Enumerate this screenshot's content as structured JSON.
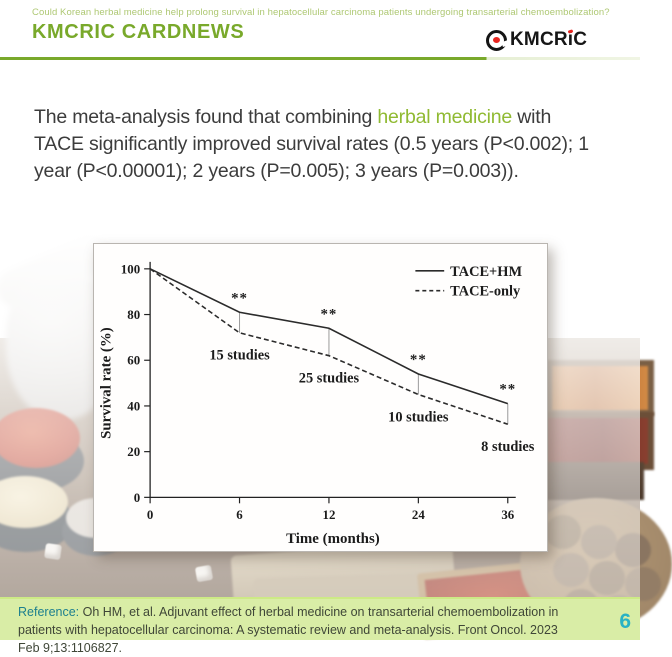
{
  "header": {
    "subtitle": "Could Korean herbal medicine help prolong survival in hepatocellular carcinoma patients undergoing transarterial chemoembolization?",
    "title": "KMCRIC CARDNEWS",
    "logo": {
      "text": "KMCRiC",
      "pre": "KMCR",
      "i_char": "i",
      "post": "C"
    },
    "accent_green": "#79a92b",
    "subtitle_green": "#aec873"
  },
  "body": {
    "segments": [
      {
        "text": "The meta-analysis found that combining ",
        "highlight": false
      },
      {
        "text": "herbal medicine",
        "highlight": true
      },
      {
        "text": " with TACE significantly improved survival rates (0.5 years (P<0.002); 1 year (P<0.00001); 2 years (P=0.005); 3 years (P=0.003)).",
        "highlight": false
      }
    ],
    "highlight_color": "#90ba32",
    "text_color": "#3c3c3c"
  },
  "chart_data": {
    "type": "line",
    "title": "",
    "xlabel": "Time (months)",
    "ylabel": "Survival rate (%)",
    "x_ticks": [
      0,
      6,
      12,
      24,
      36
    ],
    "y_ticks": [
      0,
      20,
      40,
      60,
      80,
      100
    ],
    "ylim": [
      0,
      100
    ],
    "grid": false,
    "legend_position": "top-right",
    "series": [
      {
        "name": "TACE+HM",
        "style": "solid",
        "values": [
          100,
          81,
          74,
          54,
          41
        ]
      },
      {
        "name": "TACE-only",
        "style": "dashed",
        "values": [
          100,
          72,
          62,
          45,
          32
        ]
      }
    ],
    "annotations": {
      "significance_marks": [
        "**",
        "**",
        "**",
        "**"
      ],
      "significance_at_months": [
        6,
        12,
        24,
        36
      ],
      "study_labels": [
        "15 studies",
        "25 studies",
        "10 studies",
        "8 studies"
      ],
      "study_labels_at_months": [
        6,
        12,
        24,
        36
      ]
    }
  },
  "footer": {
    "reference_label": "Reference:",
    "reference_text": " Oh HM, et al. Adjuvant effect of herbal medicine on transarterial chemoembolization in patients with hepatocellular carcinoma: A systematic review and meta-analysis. Front Oncol. 2023 Feb 9;13:1106827.",
    "page_number": "6",
    "bg_color": "#d9eda6",
    "label_color": "#1d7f8e",
    "page_color": "#29b2c4"
  }
}
